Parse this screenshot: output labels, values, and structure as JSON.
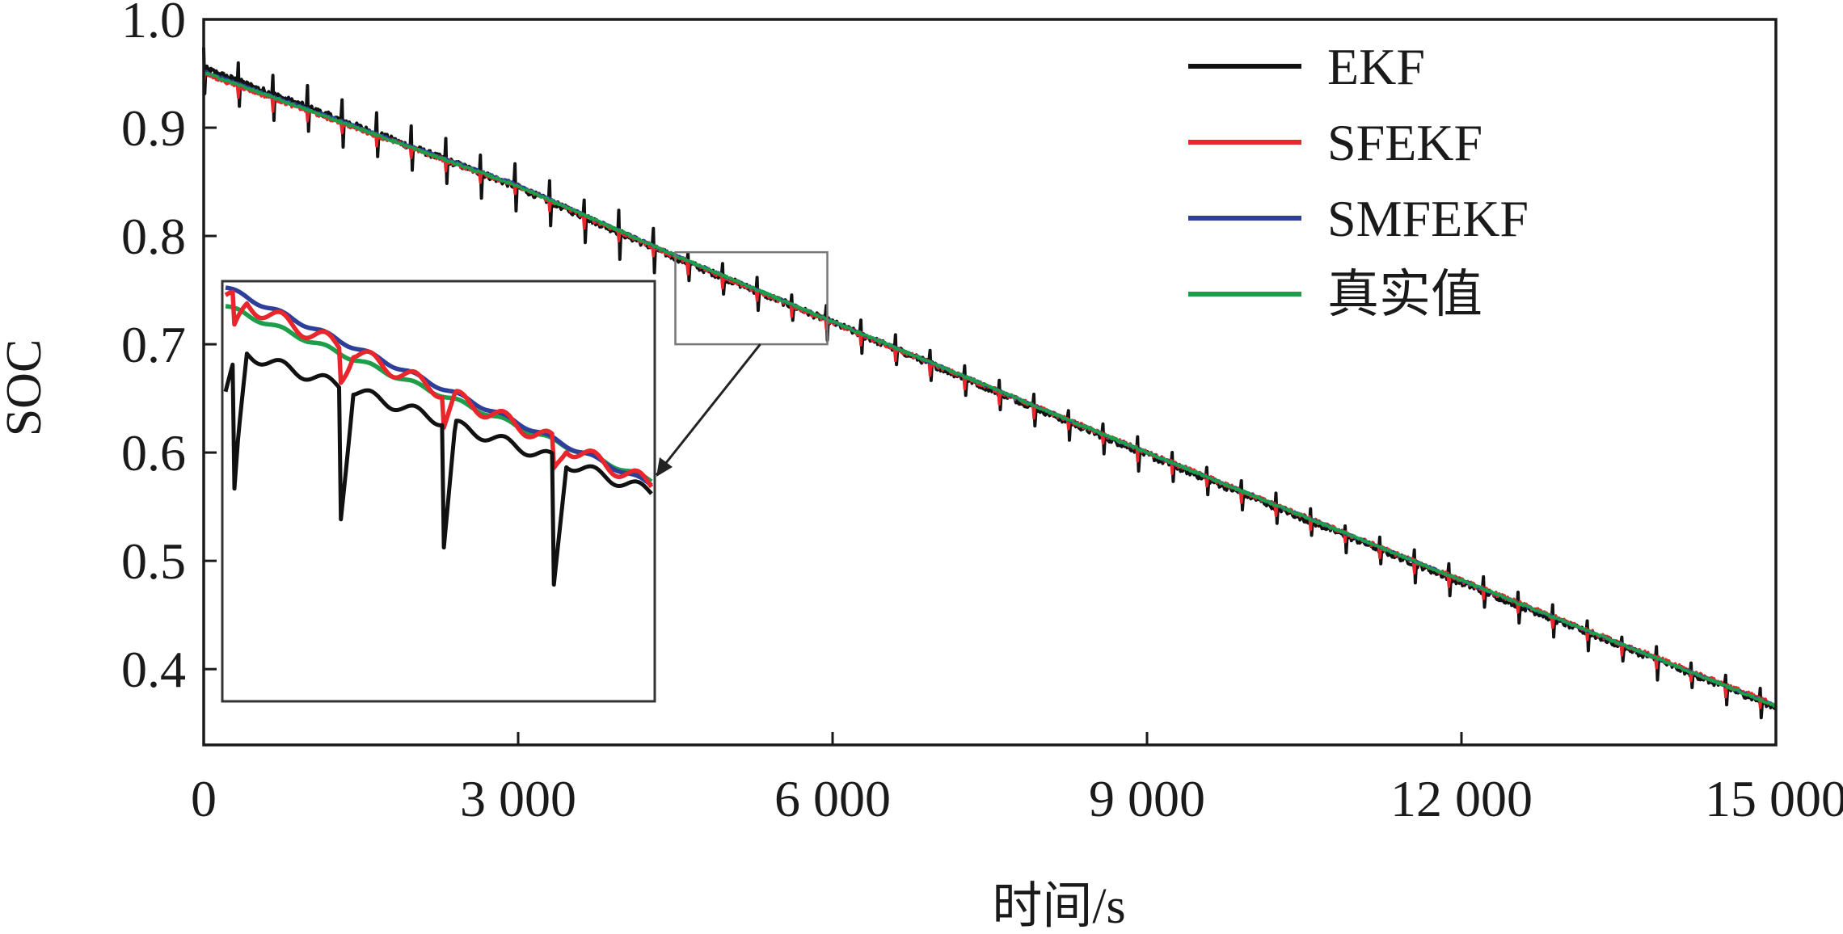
{
  "chart_data": {
    "type": "line",
    "title": "",
    "xlabel": "时间/s",
    "ylabel": "SOC",
    "xlim": [
      0,
      15000
    ],
    "ylim": [
      0.33,
      1.0
    ],
    "x_ticks": [
      0,
      3000,
      6000,
      9000,
      12000,
      15000
    ],
    "x_tick_labels": [
      "0",
      "3 000",
      "6 000",
      "9 000",
      "12 000",
      "15 000"
    ],
    "y_ticks": [
      0.4,
      0.5,
      0.6,
      0.7,
      0.8,
      0.9,
      1.0
    ],
    "y_tick_labels": [
      "0.4",
      "0.5",
      "0.6",
      "0.7",
      "0.8",
      "0.9",
      "1.0"
    ],
    "legend_position": "top-right",
    "grid": false,
    "series": [
      {
        "name": "EKF",
        "color": "#111111",
        "x": [
          0,
          3000,
          4500,
          6000,
          9000,
          12000,
          15000
        ],
        "y": [
          0.955,
          0.845,
          0.78,
          0.72,
          0.598,
          0.48,
          0.365
        ],
        "note_spikes": true
      },
      {
        "name": "SFEKF",
        "color": "#e8262b",
        "x": [
          0,
          3000,
          4500,
          6000,
          9000,
          12000,
          15000
        ],
        "y": [
          0.95,
          0.846,
          0.781,
          0.72,
          0.6,
          0.482,
          0.367
        ]
      },
      {
        "name": "SMFEKF",
        "color": "#2e3f9a",
        "x": [
          0,
          3000,
          4500,
          6000,
          9000,
          12000,
          15000
        ],
        "y": [
          0.952,
          0.847,
          0.782,
          0.721,
          0.6,
          0.482,
          0.366
        ]
      },
      {
        "name": "真实值",
        "color": "#1e9e4a",
        "x": [
          0,
          3000,
          4500,
          6000,
          9000,
          12000,
          15000
        ],
        "y": [
          0.951,
          0.846,
          0.782,
          0.721,
          0.6,
          0.482,
          0.366
        ]
      }
    ],
    "inset": {
      "zoom_region_x": [
        4500,
        5950
      ],
      "zoom_region_y": [
        0.7,
        0.785
      ]
    }
  }
}
